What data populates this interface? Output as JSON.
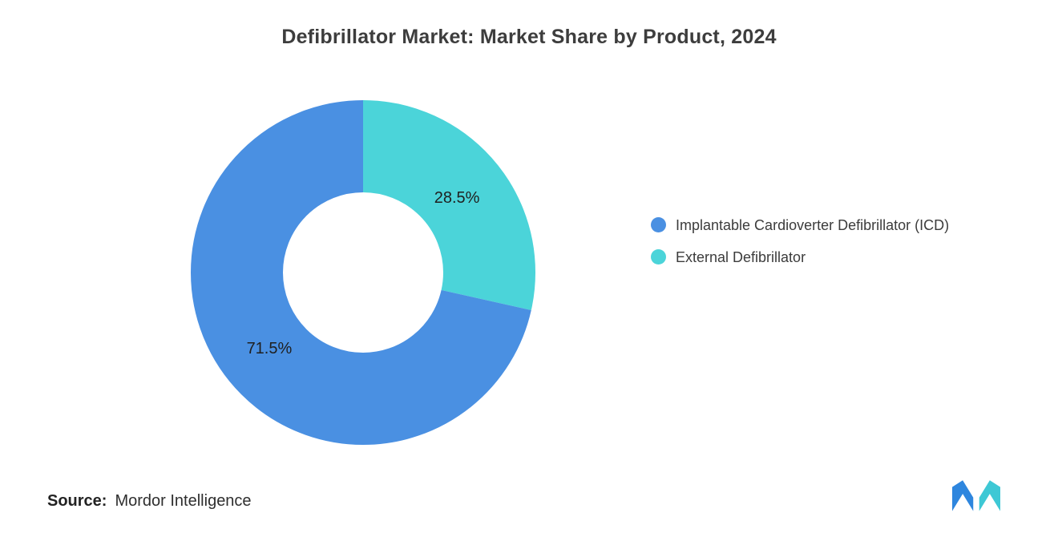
{
  "chart_data": {
    "type": "pie",
    "donut": true,
    "title": "Defibrillator Market: Market Share by Product, 2024",
    "start_angle": "top",
    "direction": "clockwise",
    "legend_position": "right",
    "slices": [
      {
        "name": "External Defibrillator",
        "value": 28.5,
        "label": "28.5%",
        "color": "#4BD4D9"
      },
      {
        "name": "Implantable Cardioverter Defibrillator (ICD)",
        "value": 71.5,
        "label": "71.5%",
        "color": "#4A90E2"
      }
    ]
  },
  "legend": {
    "items": [
      {
        "label": "Implantable Cardioverter Defibrillator (ICD)",
        "color": "#4A90E2"
      },
      {
        "label": "External Defibrillator",
        "color": "#4BD4D9"
      }
    ]
  },
  "footer": {
    "source_label": "Source:",
    "source_value": "Mordor Intelligence"
  },
  "icons": {
    "logo": "mordor-intelligence-logo",
    "logo_colors": {
      "blue": "#2E86DE",
      "teal": "#3EC8D5"
    }
  }
}
